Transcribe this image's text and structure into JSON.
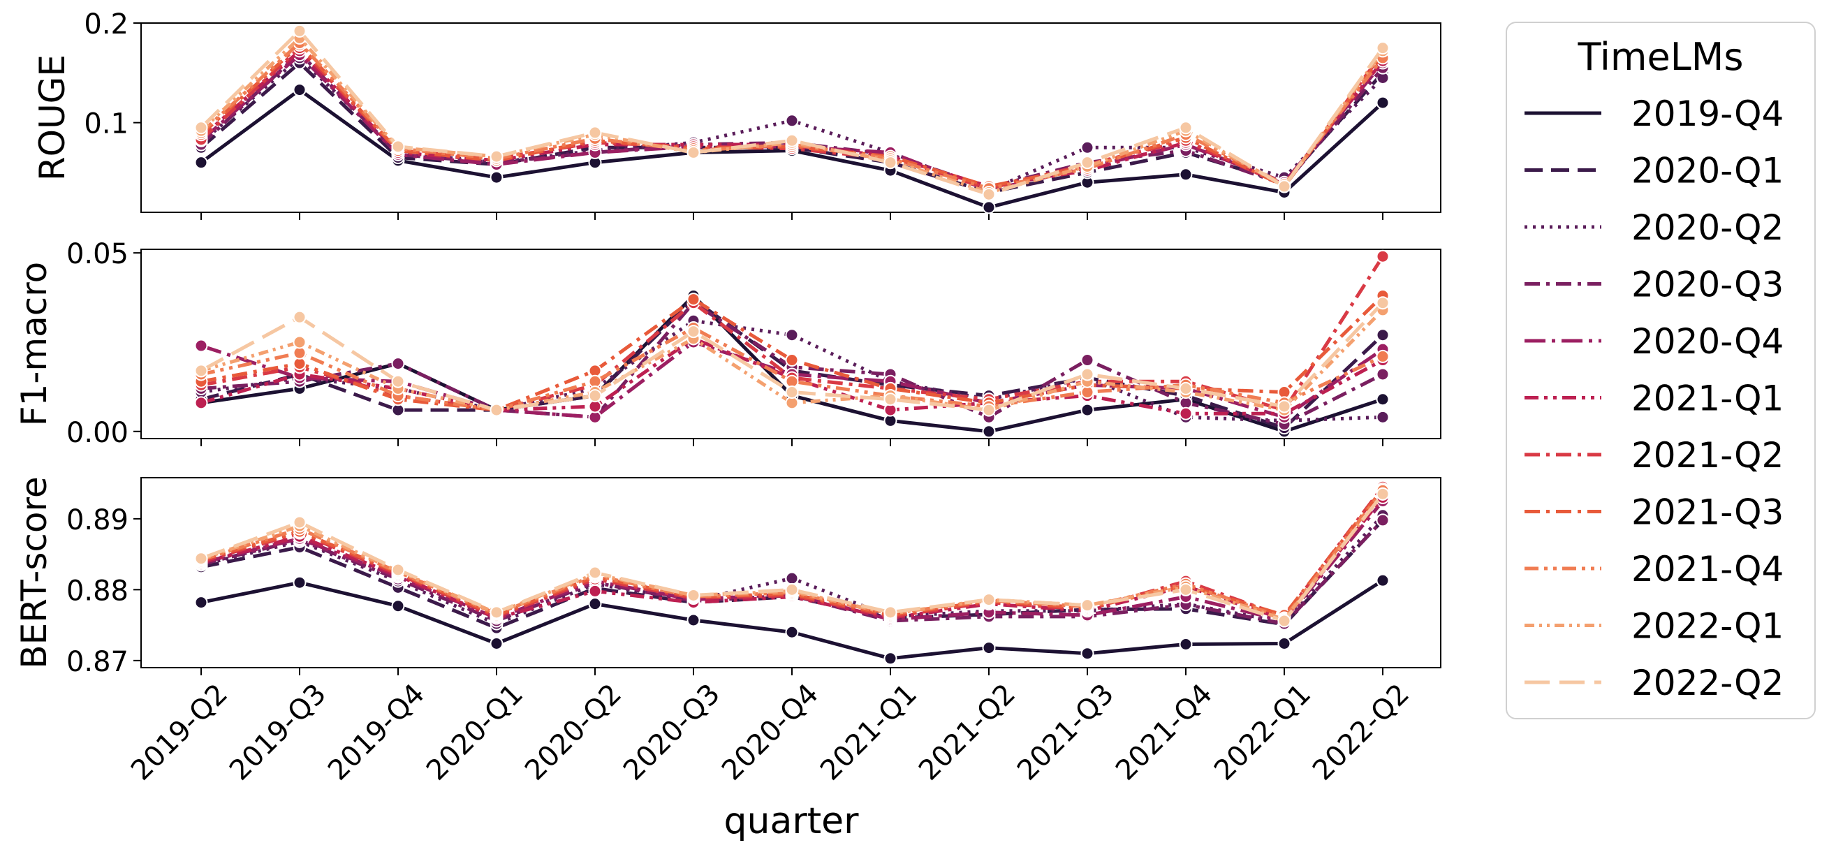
{
  "chart_data": {
    "type": "line",
    "title": "",
    "xlabel": "quarter",
    "categories": [
      "2019-Q2",
      "2019-Q3",
      "2019-Q4",
      "2020-Q1",
      "2020-Q2",
      "2020-Q3",
      "2020-Q4",
      "2021-Q1",
      "2021-Q2",
      "2021-Q3",
      "2021-Q4",
      "2022-Q1",
      "2022-Q2"
    ],
    "legend": {
      "title": "TimeLMs",
      "placement": "outside-right",
      "entries": [
        {
          "name": "2019-Q4",
          "color": "#1c1132",
          "dash": "solid"
        },
        {
          "name": "2020-Q1",
          "color": "#3b1a4a",
          "dash": "dashed"
        },
        {
          "name": "2020-Q2",
          "color": "#5a1d5a",
          "dash": "dotted"
        },
        {
          "name": "2020-Q3",
          "color": "#7a1f60",
          "dash": "dashdot"
        },
        {
          "name": "2020-Q4",
          "color": "#9c1f62",
          "dash": "dashdot-long"
        },
        {
          "name": "2021-Q1",
          "color": "#bd2051",
          "dash": "dashdotdot"
        },
        {
          "name": "2021-Q2",
          "color": "#d93a45",
          "dash": "dashdot"
        },
        {
          "name": "2021-Q3",
          "color": "#e85a3a",
          "dash": "dashdot"
        },
        {
          "name": "2021-Q4",
          "color": "#f07c52",
          "dash": "dashdotdot"
        },
        {
          "name": "2022-Q1",
          "color": "#f4a06f",
          "dash": "dashdotdot-dense"
        },
        {
          "name": "2022-Q2",
          "color": "#f6c7a2",
          "dash": "long-dashed"
        }
      ]
    },
    "panels": [
      {
        "ylabel": "ROUGE",
        "ylim": [
          0.01,
          0.2
        ],
        "yticks": [
          0.1,
          0.2
        ],
        "ytick_labels": [
          "0.1",
          "0.2"
        ],
        "series": [
          {
            "name": "2019-Q4",
            "values": [
              0.06,
              0.133,
              0.062,
              0.045,
              0.06,
              0.07,
              0.072,
              0.052,
              0.015,
              0.04,
              0.048,
              0.03,
              0.12
            ]
          },
          {
            "name": "2020-Q1",
            "values": [
              0.075,
              0.16,
              0.065,
              0.058,
              0.075,
              0.075,
              0.075,
              0.06,
              0.03,
              0.05,
              0.07,
              0.04,
              0.15
            ]
          },
          {
            "name": "2020-Q2",
            "values": [
              0.08,
              0.165,
              0.07,
              0.06,
              0.072,
              0.08,
              0.102,
              0.07,
              0.032,
              0.075,
              0.075,
              0.045,
              0.145
            ]
          },
          {
            "name": "2020-Q3",
            "values": [
              0.078,
              0.17,
              0.068,
              0.06,
              0.07,
              0.078,
              0.08,
              0.068,
              0.035,
              0.06,
              0.072,
              0.038,
              0.155
            ]
          },
          {
            "name": "2020-Q4",
            "values": [
              0.082,
              0.168,
              0.068,
              0.058,
              0.07,
              0.076,
              0.076,
              0.07,
              0.032,
              0.055,
              0.078,
              0.04,
              0.16
            ]
          },
          {
            "name": "2021-Q1",
            "values": [
              0.085,
              0.172,
              0.07,
              0.062,
              0.078,
              0.078,
              0.078,
              0.066,
              0.036,
              0.052,
              0.08,
              0.038,
              0.162
            ]
          },
          {
            "name": "2021-Q2",
            "values": [
              0.083,
              0.175,
              0.072,
              0.064,
              0.08,
              0.076,
              0.074,
              0.064,
              0.034,
              0.058,
              0.082,
              0.037,
              0.17
            ]
          },
          {
            "name": "2021-Q3",
            "values": [
              0.088,
              0.178,
              0.072,
              0.062,
              0.082,
              0.074,
              0.076,
              0.066,
              0.036,
              0.056,
              0.085,
              0.036,
              0.168
            ]
          },
          {
            "name": "2021-Q4",
            "values": [
              0.09,
              0.18,
              0.074,
              0.064,
              0.084,
              0.072,
              0.078,
              0.064,
              0.034,
              0.054,
              0.088,
              0.038,
              0.165
            ]
          },
          {
            "name": "2022-Q1",
            "values": [
              0.092,
              0.185,
              0.075,
              0.066,
              0.088,
              0.07,
              0.08,
              0.062,
              0.03,
              0.056,
              0.092,
              0.036,
              0.172
            ]
          },
          {
            "name": "2022-Q2",
            "values": [
              0.095,
              0.192,
              0.076,
              0.066,
              0.09,
              0.07,
              0.082,
              0.06,
              0.028,
              0.06,
              0.095,
              0.036,
              0.175
            ]
          }
        ]
      },
      {
        "ylabel": "F1-macro",
        "ylim": [
          -0.002,
          0.051
        ],
        "yticks": [
          0.0,
          0.05
        ],
        "ytick_labels": [
          "0.00",
          "0.05"
        ],
        "series": [
          {
            "name": "2019-Q4",
            "values": [
              0.008,
              0.012,
              0.019,
              0.006,
              0.01,
              0.038,
              0.01,
              0.003,
              0.0,
              0.006,
              0.009,
              0.0,
              0.009
            ]
          },
          {
            "name": "2020-Q1",
            "values": [
              0.009,
              0.016,
              0.006,
              0.006,
              0.01,
              0.037,
              0.017,
              0.013,
              0.01,
              0.015,
              0.01,
              0.001,
              0.027
            ]
          },
          {
            "name": "2020-Q2",
            "values": [
              0.011,
              0.015,
              0.012,
              0.006,
              0.012,
              0.031,
              0.027,
              0.014,
              0.009,
              0.015,
              0.004,
              0.003,
              0.004
            ]
          },
          {
            "name": "2020-Q3",
            "values": [
              0.012,
              0.014,
              0.019,
              0.006,
              0.004,
              0.036,
              0.018,
              0.016,
              0.004,
              0.02,
              0.008,
              0.002,
              0.016
            ]
          },
          {
            "name": "2020-Q4",
            "values": [
              0.024,
              0.015,
              0.014,
              0.006,
              0.004,
              0.025,
              0.016,
              0.014,
              0.008,
              0.013,
              0.012,
              0.004,
              0.023
            ]
          },
          {
            "name": "2021-Q1",
            "values": [
              0.008,
              0.016,
              0.012,
              0.006,
              0.007,
              0.026,
              0.015,
              0.006,
              0.008,
              0.01,
              0.005,
              0.005,
              0.02
            ]
          },
          {
            "name": "2021-Q2",
            "values": [
              0.013,
              0.018,
              0.01,
              0.006,
              0.013,
              0.036,
              0.015,
              0.012,
              0.009,
              0.014,
              0.014,
              0.006,
              0.049
            ]
          },
          {
            "name": "2021-Q3",
            "values": [
              0.014,
              0.019,
              0.009,
              0.006,
              0.017,
              0.037,
              0.02,
              0.012,
              0.008,
              0.013,
              0.012,
              0.011,
              0.038
            ]
          },
          {
            "name": "2021-Q4",
            "values": [
              0.016,
              0.022,
              0.01,
              0.006,
              0.014,
              0.029,
              0.014,
              0.01,
              0.007,
              0.011,
              0.013,
              0.008,
              0.021
            ]
          },
          {
            "name": "2022-Q1",
            "values": [
              0.017,
              0.025,
              0.012,
              0.006,
              0.011,
              0.026,
              0.008,
              0.01,
              0.006,
              0.014,
              0.011,
              0.006,
              0.034
            ]
          },
          {
            "name": "2022-Q2",
            "values": [
              0.017,
              0.032,
              0.014,
              0.006,
              0.01,
              0.028,
              0.011,
              0.009,
              0.006,
              0.016,
              0.012,
              0.007,
              0.036
            ]
          }
        ]
      },
      {
        "ylabel": "BERT-score",
        "ylim": [
          0.869,
          0.8958
        ],
        "yticks": [
          0.87,
          0.88,
          0.89
        ],
        "ytick_labels": [
          "0.87",
          "0.88",
          "0.89"
        ],
        "series": [
          {
            "name": "2019-Q4",
            "values": [
              0.8782,
              0.881,
              0.8777,
              0.8724,
              0.878,
              0.8757,
              0.874,
              0.8703,
              0.8718,
              0.871,
              0.8723,
              0.8724,
              0.8813
            ]
          },
          {
            "name": "2020-Q1",
            "values": [
              0.8832,
              0.886,
              0.8803,
              0.8746,
              0.8802,
              0.8782,
              0.879,
              0.876,
              0.8765,
              0.8772,
              0.8773,
              0.8751,
              0.8898
            ]
          },
          {
            "name": "2020-Q2",
            "values": [
              0.8835,
              0.8868,
              0.8812,
              0.8752,
              0.8808,
              0.8785,
              0.8816,
              0.8762,
              0.877,
              0.877,
              0.878,
              0.8754,
              0.8905
            ]
          },
          {
            "name": "2020-Q3",
            "values": [
              0.8836,
              0.887,
              0.8815,
              0.8756,
              0.881,
              0.8784,
              0.8792,
              0.8756,
              0.8762,
              0.8762,
              0.8779,
              0.8752,
              0.8898
            ]
          },
          {
            "name": "2020-Q4",
            "values": [
              0.8838,
              0.8872,
              0.8818,
              0.876,
              0.8812,
              0.8786,
              0.8794,
              0.8758,
              0.8768,
              0.8764,
              0.879,
              0.8756,
              0.8925
            ]
          },
          {
            "name": "2021-Q1",
            "values": [
              0.8838,
              0.8875,
              0.882,
              0.876,
              0.8798,
              0.8782,
              0.879,
              0.876,
              0.878,
              0.877,
              0.8805,
              0.8758,
              0.893
            ]
          },
          {
            "name": "2021-Q2",
            "values": [
              0.884,
              0.888,
              0.8822,
              0.8762,
              0.8815,
              0.8788,
              0.8792,
              0.8762,
              0.8782,
              0.8772,
              0.8812,
              0.8762,
              0.8945
            ]
          },
          {
            "name": "2021-Q3",
            "values": [
              0.8842,
              0.8882,
              0.8824,
              0.8764,
              0.8818,
              0.879,
              0.8794,
              0.8764,
              0.8784,
              0.8774,
              0.8806,
              0.8764,
              0.8942
            ]
          },
          {
            "name": "2021-Q4",
            "values": [
              0.8842,
              0.8886,
              0.8825,
              0.8766,
              0.882,
              0.879,
              0.8796,
              0.8766,
              0.8785,
              0.8776,
              0.8808,
              0.876,
              0.894
            ]
          },
          {
            "name": "2022-Q1",
            "values": [
              0.8843,
              0.889,
              0.8826,
              0.8767,
              0.8822,
              0.8792,
              0.8798,
              0.8766,
              0.8786,
              0.8778,
              0.8804,
              0.8758,
              0.8935
            ]
          },
          {
            "name": "2022-Q2",
            "values": [
              0.8844,
              0.8895,
              0.8828,
              0.8768,
              0.8824,
              0.8792,
              0.88,
              0.8768,
              0.8786,
              0.8778,
              0.88,
              0.8756,
              0.8935
            ]
          }
        ]
      }
    ]
  }
}
